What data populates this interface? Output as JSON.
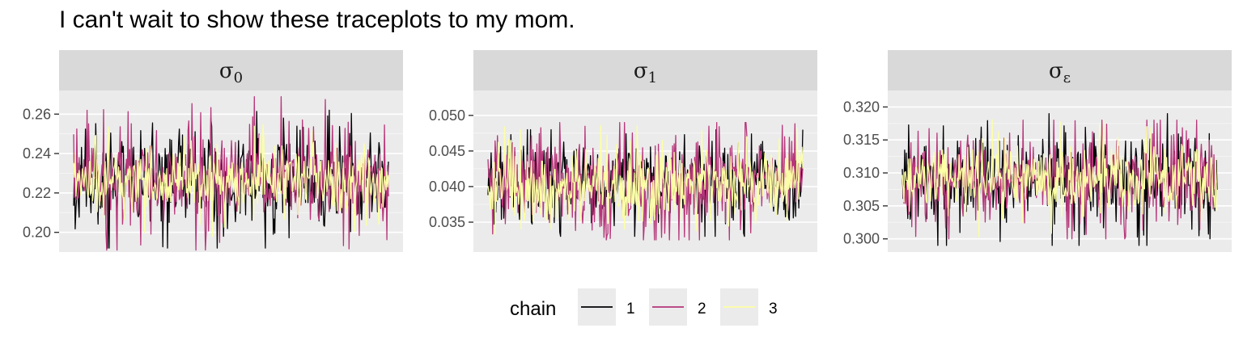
{
  "title": "I can't wait to show these traceplots to my mom.",
  "chart_data": {
    "type": "line",
    "chain_colors": {
      "1": "#000004",
      "2": "#b6367a",
      "3": "#fcffa4"
    },
    "legend": {
      "title": "chain",
      "entries": [
        "1",
        "2",
        "3"
      ],
      "position": "bottom"
    },
    "panels": [
      {
        "strip_symbol": "σ",
        "strip_sub": "0",
        "ylim": [
          0.19,
          0.272
        ],
        "yticks": [
          0.2,
          0.22,
          0.24,
          0.26
        ],
        "ytick_labels": [
          "0.20",
          "0.22",
          "0.24",
          "0.26"
        ],
        "series": [
          {
            "chain": "1",
            "center": 0.226,
            "sd": 0.011,
            "min": 0.192,
            "max": 0.262,
            "seed": 11
          },
          {
            "chain": "2",
            "center": 0.226,
            "sd": 0.012,
            "min": 0.191,
            "max": 0.271,
            "seed": 23
          },
          {
            "chain": "3",
            "center": 0.226,
            "sd": 0.008,
            "min": 0.198,
            "max": 0.262,
            "seed": 37
          }
        ]
      },
      {
        "strip_symbol": "σ",
        "strip_sub": "1",
        "ylim": [
          0.0308,
          0.0535
        ],
        "yticks": [
          0.035,
          0.04,
          0.045,
          0.05
        ],
        "ytick_labels": [
          "0.035",
          "0.040",
          "0.045",
          "0.050"
        ],
        "series": [
          {
            "chain": "1",
            "center": 0.0405,
            "sd": 0.003,
            "min": 0.033,
            "max": 0.048,
            "seed": 41
          },
          {
            "chain": "2",
            "center": 0.0405,
            "sd": 0.0033,
            "min": 0.0325,
            "max": 0.049,
            "seed": 53
          },
          {
            "chain": "3",
            "center": 0.0405,
            "sd": 0.0024,
            "min": 0.0315,
            "max": 0.0525,
            "seed": 67
          }
        ]
      },
      {
        "strip_symbol": "σ",
        "strip_sub": "ε",
        "ylim": [
          0.298,
          0.3225
        ],
        "yticks": [
          0.3,
          0.305,
          0.31,
          0.315,
          0.32
        ],
        "ytick_labels": [
          "0.300",
          "0.305",
          "0.310",
          "0.315",
          "0.320"
        ],
        "series": [
          {
            "chain": "1",
            "center": 0.3092,
            "sd": 0.0035,
            "min": 0.299,
            "max": 0.319,
            "seed": 71
          },
          {
            "chain": "2",
            "center": 0.3092,
            "sd": 0.0035,
            "min": 0.3,
            "max": 0.318,
            "seed": 83
          },
          {
            "chain": "3",
            "center": 0.3092,
            "sd": 0.0025,
            "min": 0.3,
            "max": 0.321,
            "seed": 97
          }
        ]
      }
    ]
  }
}
